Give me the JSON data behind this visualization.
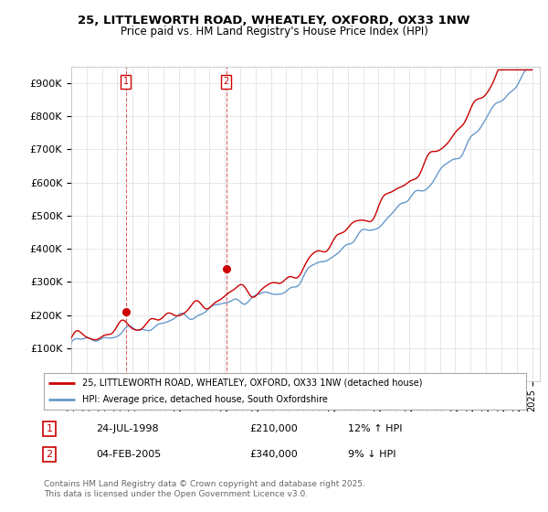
{
  "title1": "25, LITTLEWORTH ROAD, WHEATLEY, OXFORD, OX33 1NW",
  "title2": "Price paid vs. HM Land Registry's House Price Index (HPI)",
  "ylim": [
    0,
    950000
  ],
  "yticks": [
    0,
    100000,
    200000,
    300000,
    400000,
    500000,
    600000,
    700000,
    800000,
    900000
  ],
  "xlim_start": 1995.0,
  "xlim_end": 2025.5,
  "sale1_date": 1998.56,
  "sale1_price": 210000,
  "sale1_label": "1",
  "sale2_date": 2005.09,
  "sale2_price": 340000,
  "sale2_label": "2",
  "line1_color": "#cc0000",
  "line2_color": "#6699cc",
  "legend_label1": "25, LITTLEWORTH ROAD, WHEATLEY, OXFORD, OX33 1NW (detached house)",
  "legend_label2": "HPI: Average price, detached house, South Oxfordshire",
  "table_row1": [
    "1",
    "24-JUL-1998",
    "£210,000",
    "12% ↑ HPI"
  ],
  "table_row2": [
    "2",
    "04-FEB-2005",
    "£340,000",
    "9% ↓ HPI"
  ],
  "footer": "Contains HM Land Registry data © Crown copyright and database right 2025.\nThis data is licensed under the Open Government Licence v3.0.",
  "background_color": "#ffffff",
  "grid_color": "#dddddd",
  "sale_marker_color": "#cc0000"
}
